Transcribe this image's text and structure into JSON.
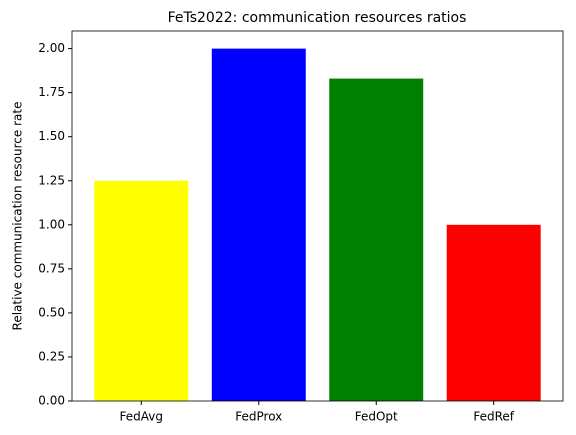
{
  "chart_data": {
    "type": "bar",
    "title": "FeTs2022: communication resources ratios",
    "y_label": "Relative communication resource rate",
    "categories": [
      "FedAvg",
      "FedProx",
      "FedOpt",
      "FedRef"
    ],
    "values": [
      1.25,
      2.0,
      1.83,
      1.0
    ],
    "colors": [
      "#ffff00",
      "#0000ff",
      "#008000",
      "#ff0000"
    ],
    "ylim": [
      0,
      2.1
    ],
    "yticks": [
      {
        "value": 0,
        "label": "0.00"
      },
      {
        "value": 0.25,
        "label": "0.25"
      },
      {
        "value": 0.5,
        "label": "0.50"
      },
      {
        "value": 0.75,
        "label": "0.75"
      },
      {
        "value": 1,
        "label": "1.00"
      },
      {
        "value": 1.25,
        "label": "1.25"
      },
      {
        "value": 1.5,
        "label": "1.50"
      },
      {
        "value": 1.75,
        "label": "1.75"
      },
      {
        "value": 2,
        "label": "2.00"
      }
    ],
    "grid": false
  }
}
